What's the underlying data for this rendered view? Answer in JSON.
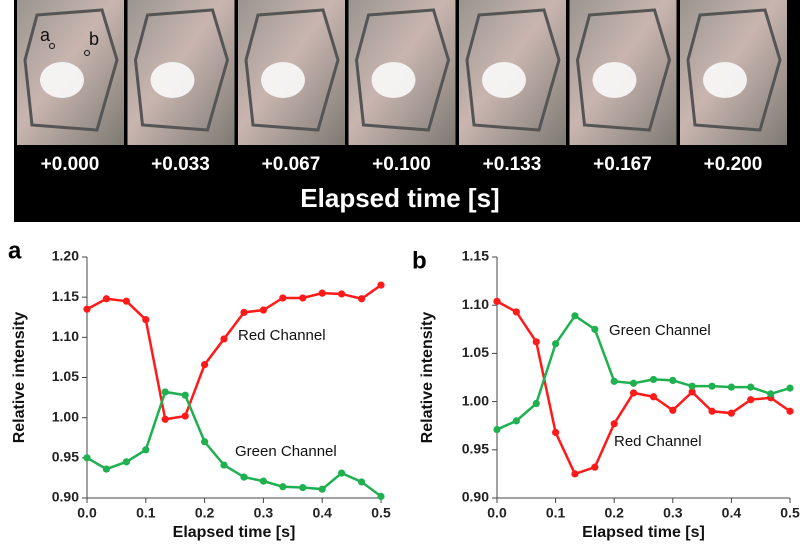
{
  "strip": {
    "frame_labels": [
      "+0.000",
      "+0.033",
      "+0.067",
      "+0.100",
      "+0.133",
      "+0.167",
      "+0.200"
    ],
    "xlabel": "Elapsed time [s]",
    "markers": [
      "a",
      "b"
    ]
  },
  "chart_data": [
    {
      "type": "line",
      "panel": "a",
      "xlabel": "Elapsed time [s]",
      "ylabel": "Relative intensity",
      "x": [
        0,
        0.033,
        0.067,
        0.1,
        0.133,
        0.167,
        0.2,
        0.233,
        0.267,
        0.3,
        0.333,
        0.367,
        0.4,
        0.433,
        0.467,
        0.5
      ],
      "series": [
        {
          "name": "Red Channel",
          "color": "#ff1a1a",
          "values": [
            1.135,
            1.148,
            1.145,
            1.122,
            0.998,
            1.002,
            1.066,
            1.098,
            1.131,
            1.134,
            1.149,
            1.149,
            1.155,
            1.154,
            1.148,
            1.165
          ]
        },
        {
          "name": "Green Channel",
          "color": "#1fb050",
          "values": [
            0.95,
            0.936,
            0.945,
            0.96,
            1.032,
            1.028,
            0.97,
            0.941,
            0.926,
            0.921,
            0.914,
            0.913,
            0.911,
            0.931,
            0.92,
            0.902
          ]
        }
      ],
      "xlim": [
        0,
        0.5
      ],
      "xticks": [
        {
          "value": 0,
          "label": "0.0"
        },
        0.1,
        0.2,
        0.3,
        0.4,
        0.5
      ],
      "ylim": [
        0.9,
        1.2
      ],
      "yticks": [
        {
          "value": 0.9,
          "label": "0.90"
        },
        0.95,
        {
          "value": 1,
          "label": "1.00"
        },
        1.05,
        {
          "value": 1.1,
          "label": "1.10"
        },
        1.15,
        {
          "value": 1.2,
          "label": "1.20"
        }
      ]
    },
    {
      "type": "line",
      "panel": "b",
      "xlabel": "Elapsed time [s]",
      "ylabel": "Relative intensity",
      "x": [
        0,
        0.033,
        0.067,
        0.1,
        0.133,
        0.167,
        0.2,
        0.233,
        0.267,
        0.3,
        0.333,
        0.367,
        0.4,
        0.433,
        0.467,
        0.5
      ],
      "series": [
        {
          "name": "Red Channel",
          "color": "#ff1a1a",
          "values": [
            1.104,
            1.093,
            1.062,
            0.968,
            0.925,
            0.932,
            0.977,
            1.009,
            1.005,
            0.991,
            1.01,
            0.99,
            0.988,
            1.002,
            1.004,
            0.99
          ]
        },
        {
          "name": "Green Channel",
          "color": "#1fb050",
          "values": [
            0.971,
            0.98,
            0.998,
            1.06,
            1.089,
            1.075,
            1.021,
            1.019,
            1.023,
            1.022,
            1.016,
            1.016,
            1.015,
            1.015,
            1.008,
            1.014
          ]
        }
      ],
      "xlim": [
        0,
        0.5
      ],
      "xticks": [
        {
          "value": 0,
          "label": "0.0"
        },
        0.1,
        0.2,
        0.3,
        0.4,
        0.5
      ],
      "ylim": [
        0.9,
        1.15
      ],
      "yticks": [
        {
          "value": 0.9,
          "label": "0.90"
        },
        0.95,
        {
          "value": 1,
          "label": "1.00"
        },
        1.05,
        {
          "value": 1.1,
          "label": "1.10"
        },
        1.15
      ]
    }
  ]
}
